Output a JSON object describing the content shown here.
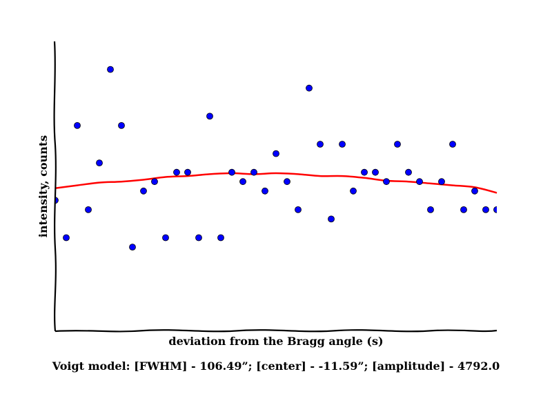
{
  "chart_data": {
    "type": "scatter",
    "title": "",
    "xlabel": "deviation from the Bragg angle (s)",
    "ylabel": "intensity, counts",
    "xlim": [
      0,
      40
    ],
    "ylim": [
      0,
      31
    ],
    "grid": false,
    "x_ticks_shown": false,
    "y_ticks_shown": false,
    "series": [
      {
        "kind": "points",
        "color": "#0000ff",
        "x": [
          0,
          1,
          2,
          3,
          4,
          5,
          6,
          7,
          8,
          9,
          10,
          11,
          12,
          13,
          14,
          15,
          16,
          17,
          18,
          19,
          20,
          21,
          22,
          23,
          24,
          25,
          26,
          27,
          28,
          29,
          30,
          31,
          32,
          33,
          34,
          35,
          36,
          37,
          38,
          39,
          40
        ],
        "y": [
          14,
          10,
          22,
          13,
          18,
          28,
          22,
          9,
          15,
          16,
          10,
          17,
          17,
          10,
          23,
          10,
          17,
          16,
          17,
          15,
          19,
          16,
          13,
          26,
          20,
          12,
          20,
          15,
          17,
          17,
          16,
          20,
          17,
          16,
          13,
          16,
          20,
          13,
          15,
          13,
          13
        ]
      },
      {
        "kind": "fit",
        "color": "#ff0000",
        "x": [
          0,
          2,
          4,
          6,
          8,
          10,
          12,
          14,
          16,
          18,
          20,
          22,
          24,
          26,
          28,
          30,
          32,
          34,
          36,
          38,
          40
        ],
        "y": [
          15.3,
          15.6,
          15.9,
          16.0,
          16.2,
          16.5,
          16.6,
          16.8,
          16.9,
          16.8,
          16.9,
          16.8,
          16.6,
          16.6,
          16.4,
          16.1,
          16.0,
          15.8,
          15.6,
          15.4,
          14.8
        ]
      }
    ]
  },
  "caption": "Voigt model:   [FWHM] - 106.49”; [center] - -11.59”; [amplitude] - 4792.0"
}
